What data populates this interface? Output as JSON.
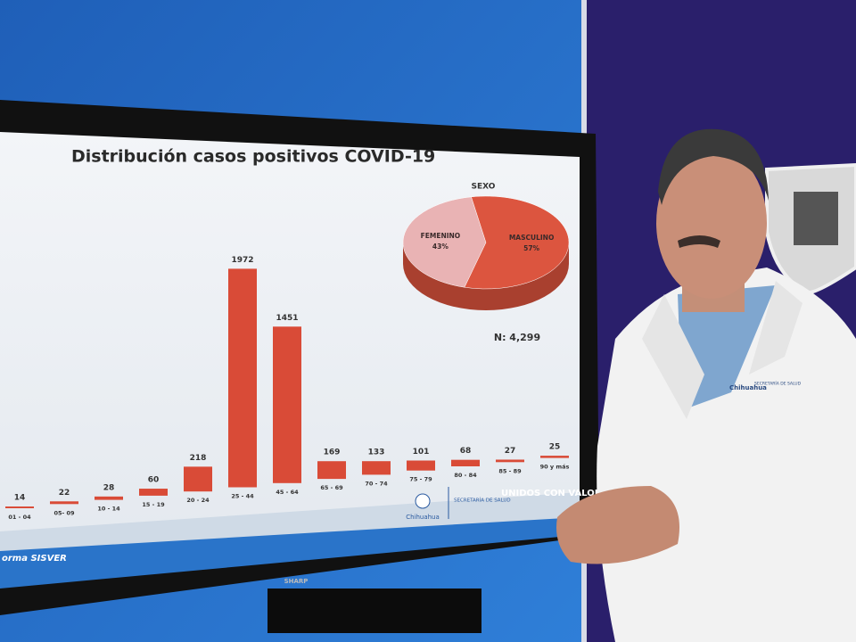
{
  "chart_data": [
    {
      "type": "bar",
      "title": "Distribución casos positivos COVID-19",
      "categories": [
        "01 - 04",
        "05- 09",
        "10 - 14",
        "15 - 19",
        "20 - 24",
        "25 - 44",
        "45 - 64",
        "65 - 69",
        "70 - 74",
        "75 - 79",
        "80 - 84",
        "85 - 89",
        "90 y más"
      ],
      "values": [
        14,
        22,
        28,
        60,
        218,
        1972,
        1451,
        169,
        133,
        101,
        68,
        27,
        25
      ],
      "color": "#d94b37"
    },
    {
      "type": "pie",
      "title": "SEXO",
      "categories": [
        "FEMENINO",
        "MASCULINO"
      ],
      "values": [
        43,
        57
      ],
      "value_labels": [
        "43%",
        "57%"
      ],
      "colors": [
        "#e9b3b4",
        "#dc553f"
      ],
      "annotation": "N: 4,299"
    }
  ],
  "screen_footer": {
    "source": "orma SISVER",
    "logo": "Chihuahua",
    "department": "SECRETARÍA DE SALUD",
    "slogan": "UNIDOS CON VALOR"
  },
  "tv_brand": "SHARP",
  "coat_badge": {
    "logo": "Chihuahua",
    "department": "SECRETARÍA DE SALUD"
  }
}
